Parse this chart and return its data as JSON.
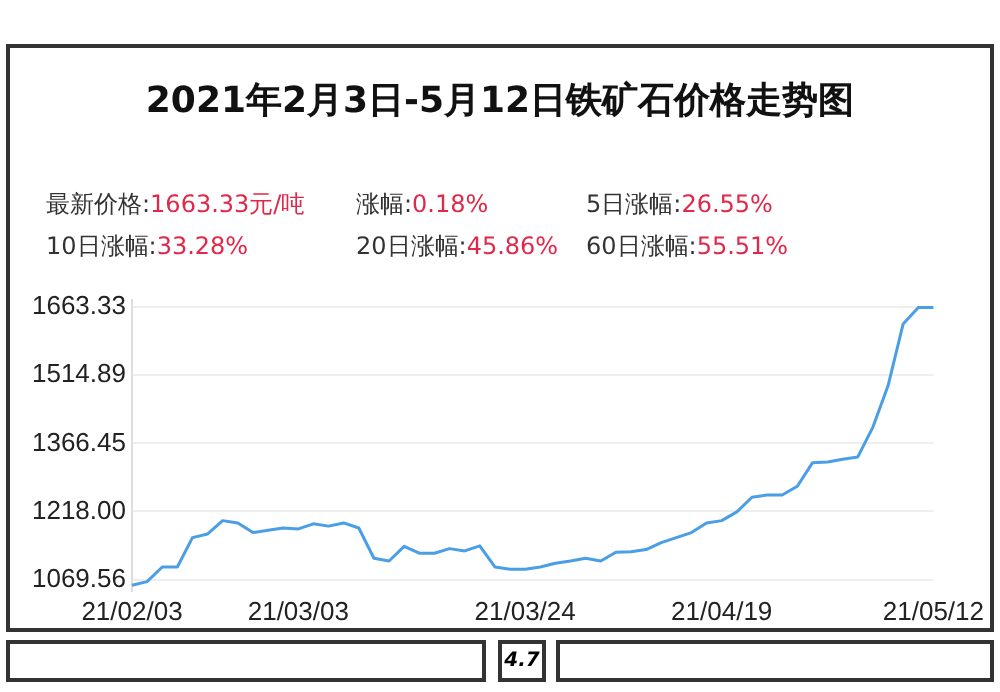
{
  "chart_data": {
    "type": "line",
    "title": "2021年2月3日-5月12日铁矿石价格走势图",
    "annotations": [
      "最新价格:",
      "1663.33元/吨",
      "涨幅:",
      "0.18%",
      "5日涨幅:",
      "26.55%",
      "10日涨幅:",
      "33.28%",
      "20日涨幅:",
      "45.86%",
      "60日涨幅:",
      "55.51%",
      "4.7"
    ],
    "categories": [
      "21/02/03",
      null,
      null,
      null,
      null,
      null,
      null,
      null,
      null,
      null,
      null,
      "21/03/03",
      null,
      null,
      null,
      null,
      null,
      null,
      null,
      null,
      null,
      null,
      null,
      null,
      null,
      null,
      "21/03/24",
      null,
      null,
      null,
      null,
      null,
      null,
      null,
      null,
      null,
      null,
      null,
      null,
      "21/04/19",
      null,
      null,
      null,
      null,
      null,
      null,
      null,
      null,
      null,
      null,
      null,
      null,
      null,
      "21/05/12"
    ],
    "series": [
      {
        "color": "#4a9ee6",
        "values": [
          1057,
          1065,
          1097,
          1097,
          1161,
          1169,
          1198,
          1193,
          1172,
          1177,
          1182,
          1180,
          1191,
          1186,
          1193,
          1182,
          1116,
          1110,
          1142,
          1127,
          1127,
          1137,
          1132,
          1143,
          1097,
          1092,
          1092,
          1097,
          1105,
          1110,
          1116,
          1110,
          1129,
          1130,
          1135,
          1150,
          1161,
          1172,
          1193,
          1198,
          1217,
          1249,
          1254,
          1254,
          1273,
          1324,
          1326,
          1332,
          1337,
          1402,
          1492,
          1627,
          1663,
          1663
        ]
      }
    ],
    "ylim": [
      1045,
      1680
    ],
    "yticks": [
      1069.56,
      {
        "value": 1218,
        "label": "1218.00"
      },
      1366.45,
      1514.89,
      1663.33
    ],
    "grid": "y",
    "legend": false,
    "marker": "none",
    "line_style": "solid"
  }
}
